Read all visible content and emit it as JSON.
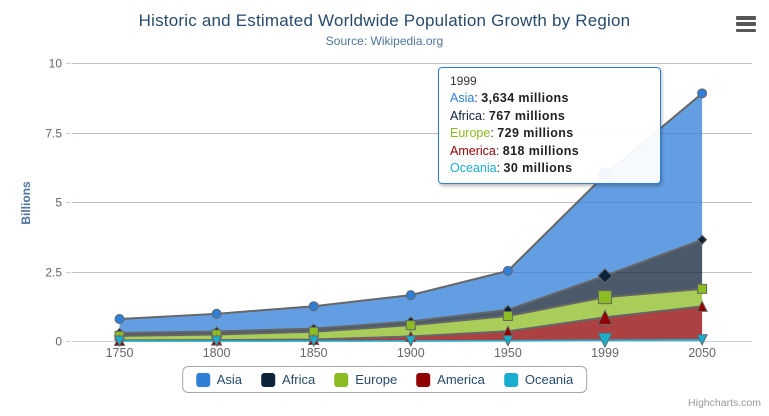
{
  "chart": {
    "title": "Historic and Estimated Worldwide Population Growth by Region",
    "subtitle": "Source: Wikipedia.org",
    "credits": "Highcharts.com"
  },
  "palette": {
    "title_color": "#274b6d",
    "subtitle_color": "#4d759e",
    "axis_title_color": "#4d759e",
    "label_color": "#666666",
    "grid_color": "#c0c0c0",
    "axis_line_color": "#c0d0e0",
    "series_line_color": "#666666",
    "legend_text_color": "#274b6d",
    "tooltip_border_color": "#2f7ed8"
  },
  "chart_data": {
    "type": "area",
    "stacking": "normal",
    "title": "Historic and Estimated Worldwide Population Growth by Region",
    "subtitle": "Source: Wikipedia.org",
    "xlabel": "",
    "ylabel": "Billions",
    "unit": "millions",
    "categories": [
      "1750",
      "1800",
      "1850",
      "1900",
      "1950",
      "1999",
      "2050"
    ],
    "series": [
      {
        "name": "Asia",
        "color": "#2f7ed8",
        "marker": "circle",
        "values": [
          502,
          635,
          809,
          947,
          1402,
          3634,
          5268
        ]
      },
      {
        "name": "Africa",
        "color": "#0d233a",
        "marker": "diamond",
        "values": [
          106,
          107,
          111,
          133,
          221,
          767,
          1766
        ]
      },
      {
        "name": "Europe",
        "color": "#8bbc21",
        "marker": "square",
        "values": [
          163,
          203,
          276,
          408,
          547,
          729,
          628
        ]
      },
      {
        "name": "America",
        "color": "#910000",
        "marker": "triangle",
        "values": [
          18,
          31,
          54,
          156,
          339,
          818,
          1201
        ]
      },
      {
        "name": "Oceania",
        "color": "#1aadce",
        "marker": "triangle-down",
        "values": [
          2,
          2,
          2,
          6,
          13,
          30,
          46
        ]
      }
    ],
    "ylim_millions": [
      0,
      10000
    ],
    "yticks": {
      "values_millions": [
        0,
        2500,
        5000,
        7500,
        10000
      ],
      "labels": [
        "0",
        "2.5",
        "5",
        "7.5",
        "10"
      ]
    },
    "grid": true,
    "legend_position": "bottom",
    "hover_index": 5,
    "fill_opacity": 0.75
  },
  "tooltip": {
    "header": "1999",
    "rows": [
      {
        "name": "Asia",
        "color": "#2f7ed8",
        "value": "3,634 millions"
      },
      {
        "name": "Africa",
        "color": "#0d233a",
        "value": "767 millions"
      },
      {
        "name": "Europe",
        "color": "#8bbc21",
        "value": "729 millions"
      },
      {
        "name": "America",
        "color": "#910000",
        "value": "818 millions"
      },
      {
        "name": "Oceania",
        "color": "#1aadce",
        "value": "30 millions"
      }
    ]
  },
  "legend": {
    "items": [
      {
        "label": "Asia",
        "color": "#2f7ed8"
      },
      {
        "label": "Africa",
        "color": "#0d233a"
      },
      {
        "label": "Europe",
        "color": "#8bbc21"
      },
      {
        "label": "America",
        "color": "#910000"
      },
      {
        "label": "Oceania",
        "color": "#1aadce"
      }
    ]
  }
}
